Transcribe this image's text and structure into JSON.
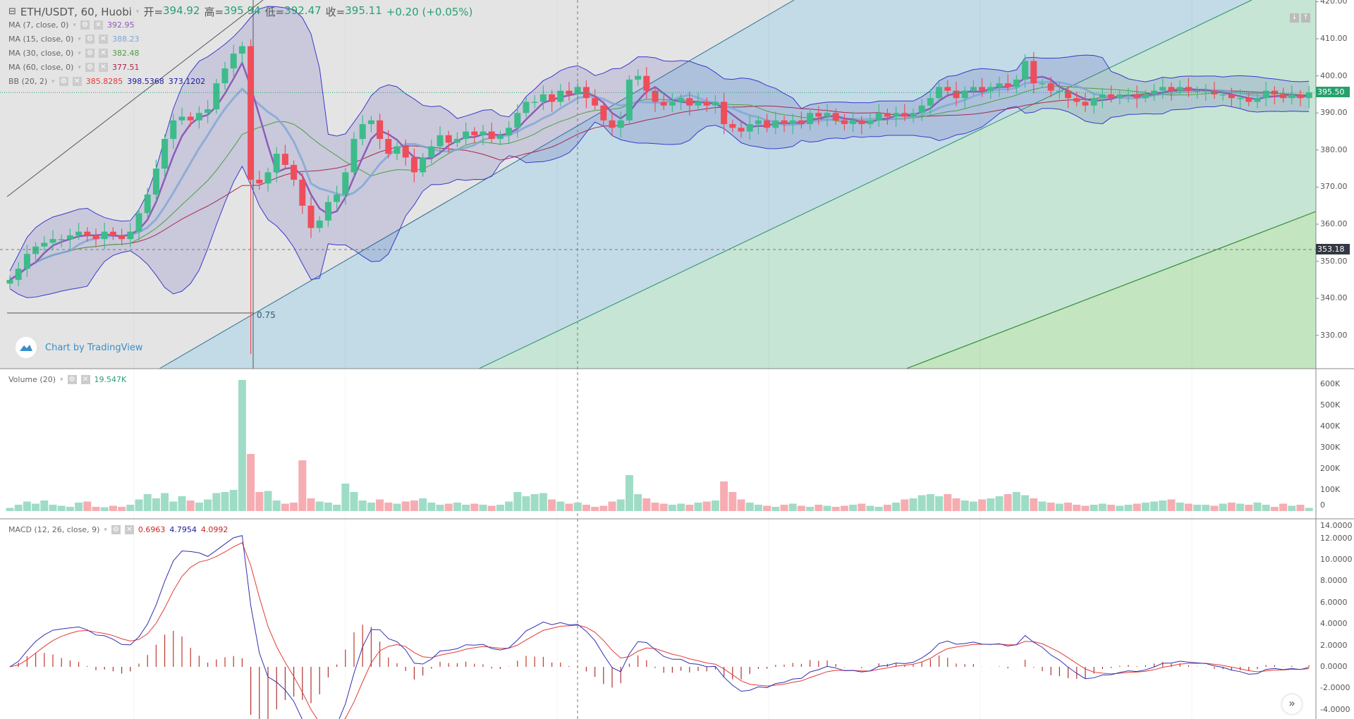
{
  "header": {
    "symbol": "ETH/USDT, 60, Huobi",
    "open_label": "开=",
    "open": "394.92",
    "high_label": "高=",
    "high": "395.94",
    "low_label": "低=",
    "low": "392.47",
    "close_label": "收=",
    "close": "395.11",
    "change": "+0.20 (+0.05%)"
  },
  "indicators": [
    {
      "label": "MA (7, close, 0)",
      "values": [
        "392.95"
      ],
      "colors": [
        "#8e5cb8"
      ]
    },
    {
      "label": "MA (15, close, 0)",
      "values": [
        "388.23"
      ],
      "colors": [
        "#7fa6d6"
      ]
    },
    {
      "label": "MA (30, close, 0)",
      "values": [
        "382.48"
      ],
      "colors": [
        "#4e9e3e"
      ]
    },
    {
      "label": "MA (60, close, 0)",
      "values": [
        "377.51"
      ],
      "colors": [
        "#a8284e"
      ]
    },
    {
      "label": "BB (20, 2)",
      "values": [
        "385.8285",
        "398.5368",
        "373.1202"
      ],
      "colors": [
        "#e53935",
        "#1a1aa0",
        "#1a1aa0"
      ]
    }
  ],
  "volume_legend": {
    "label": "Volume (20)",
    "value": "19.547K"
  },
  "macd_legend": {
    "label": "MACD (12, 26, close, 9)",
    "values": [
      "0.6963",
      "4.7954",
      "4.0992"
    ]
  },
  "watermark": "Chart by TradingView",
  "fib_label": "0.75",
  "price_tags": {
    "last": "395.50",
    "crosshair": "353.18"
  },
  "colors": {
    "up": "#3dbb8a",
    "down": "#ef4d5a",
    "vol_up": "#9fdcc6",
    "vol_down": "#f6adb2",
    "bb": "#3a3acc"
  },
  "chart_data": {
    "type": "candlestick",
    "price_axis": {
      "ticks": [
        "420.00",
        "410.00",
        "400.00",
        "390.00",
        "380.00",
        "370.00",
        "360.00",
        "350.00",
        "340.00",
        "330.00"
      ],
      "range": [
        322,
        420
      ]
    },
    "volume_axis": {
      "ticks": [
        "600K",
        "500K",
        "400K",
        "300K",
        "200K",
        "100K",
        "0"
      ],
      "range": [
        0,
        600
      ]
    },
    "macd_axis": {
      "ticks": [
        "14.0000",
        "12.0000",
        "10.0000",
        "8.0000",
        "6.0000",
        "4.0000",
        "2.0000",
        "0.0000",
        "-2.0000",
        "-4.0000"
      ],
      "range": [
        -4,
        14
      ]
    },
    "close": [
      345,
      348,
      352,
      354,
      355,
      356,
      356,
      357,
      358,
      357,
      356,
      358,
      357,
      356,
      358,
      363,
      368,
      375,
      383,
      388,
      389,
      388,
      390,
      391,
      398,
      402,
      406,
      408,
      372,
      371,
      374,
      379,
      376,
      372,
      365,
      359,
      361,
      366,
      368,
      374,
      383,
      387,
      388,
      383,
      379,
      381,
      378,
      374,
      378,
      381,
      384,
      382,
      383,
      385,
      384,
      385,
      383,
      384,
      386,
      390,
      393,
      393,
      395,
      393,
      396,
      395,
      397,
      394,
      392,
      388,
      386,
      388,
      399,
      400,
      396,
      393,
      392,
      393,
      394,
      392,
      393,
      392,
      393,
      387,
      386,
      385,
      387,
      388,
      386,
      388,
      387,
      388,
      387,
      390,
      389,
      390,
      388,
      387,
      388,
      387,
      388,
      390,
      389,
      390,
      389,
      390,
      392,
      394,
      397,
      396,
      394,
      396,
      397,
      396,
      397,
      398,
      397,
      399,
      404,
      398,
      398,
      396,
      396,
      394,
      393,
      392,
      394,
      395,
      394,
      395,
      395,
      394,
      395,
      396,
      397,
      396,
      397,
      396,
      396,
      396,
      395,
      395,
      394,
      394,
      393,
      394,
      396,
      395,
      394,
      395,
      394,
      395.5
    ],
    "volume_k": [
      15,
      30,
      45,
      35,
      50,
      30,
      25,
      20,
      40,
      45,
      20,
      18,
      25,
      20,
      30,
      55,
      80,
      60,
      85,
      45,
      70,
      50,
      40,
      55,
      85,
      90,
      100,
      620,
      270,
      90,
      95,
      50,
      35,
      40,
      240,
      60,
      45,
      40,
      30,
      130,
      90,
      50,
      40,
      55,
      40,
      35,
      45,
      50,
      60,
      40,
      30,
      35,
      40,
      30,
      35,
      30,
      25,
      30,
      45,
      90,
      70,
      80,
      85,
      55,
      45,
      35,
      40,
      30,
      20,
      25,
      45,
      55,
      170,
      80,
      60,
      40,
      35,
      30,
      35,
      30,
      40,
      45,
      50,
      140,
      90,
      55,
      40,
      30,
      25,
      20,
      30,
      35,
      25,
      20,
      30,
      25,
      20,
      25,
      30,
      35,
      25,
      20,
      30,
      40,
      55,
      60,
      75,
      80,
      70,
      80,
      60,
      50,
      45,
      55,
      60,
      70,
      80,
      90,
      75,
      60,
      45,
      40,
      35,
      40,
      30,
      25,
      30,
      35,
      30,
      25,
      30,
      35,
      40,
      45,
      50,
      55,
      40,
      35,
      30,
      30,
      25,
      35,
      40,
      35,
      30,
      40,
      30,
      20,
      35,
      25,
      30,
      15
    ],
    "overlays": [
      "MA 7",
      "MA 15",
      "MA 30",
      "MA 60",
      "BB 20,2"
    ],
    "macd_params": [
      12,
      26,
      9
    ]
  }
}
